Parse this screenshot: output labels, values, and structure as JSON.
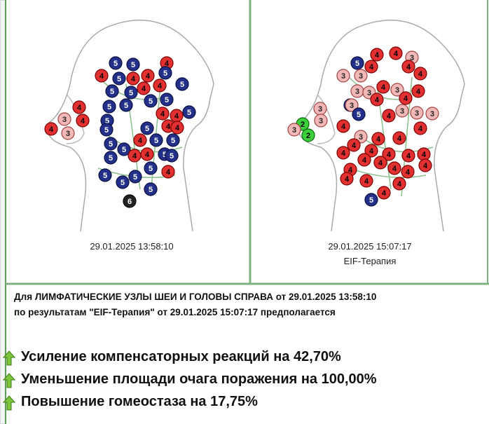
{
  "panels": [
    {
      "nodes": [
        5,
        5,
        4,
        4,
        4,
        5,
        5,
        4,
        4,
        5,
        4,
        5,
        5,
        4,
        5,
        5,
        5,
        5,
        5,
        4,
        4,
        5,
        3,
        4,
        3,
        4,
        4,
        4,
        5,
        5,
        5,
        4,
        5,
        5,
        5,
        4,
        4,
        5,
        5,
        5,
        5,
        5,
        5,
        4,
        5,
        5,
        6
      ],
      "timestamp": "29.01.2025 13:58:10"
    },
    {
      "nodes": [
        5,
        4,
        4,
        3,
        3,
        3,
        4,
        4,
        4,
        3,
        4,
        3,
        4,
        3,
        5,
        4,
        4,
        3,
        3,
        3,
        5,
        3,
        3,
        3,
        2,
        3,
        2,
        4,
        4,
        4,
        3,
        4,
        4,
        4,
        4,
        4,
        4,
        4,
        4,
        4,
        4,
        4,
        4,
        4,
        4,
        4,
        4,
        4,
        4,
        5
      ],
      "timestamp": "29.01.2025 15:07:17",
      "caption": "EIF-Терапия"
    }
  ],
  "report": {
    "line1": "Для ЛИМФАТИЧЕСКИЕ УЗЛЫ ШЕИ И ГОЛОВЫ СПРАВА от 29.01.2025 13:58:10",
    "line2": "по результатам \"EIF-Терапия\" от 29.01.2025 15:07:17 предполагается",
    "items": [
      "Усиление компенсаторных реакций на 42,70%",
      "Уменьшение площади очага поражения на 100,00%",
      "Повышение гомеостаза на 17,75%"
    ]
  }
}
